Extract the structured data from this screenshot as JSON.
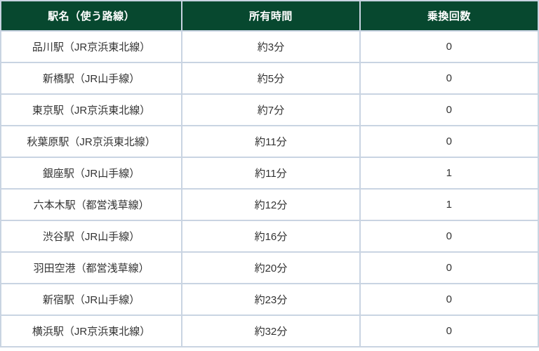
{
  "chart_data": {
    "type": "table",
    "title": "",
    "columns": [
      "駅名（使う路線）",
      "所有時間",
      "乗換回数"
    ],
    "rows": [
      [
        "品川駅（JR京浜東北線）",
        "約3分",
        "0"
      ],
      [
        "新橋駅（JR山手線）",
        "約5分",
        "0"
      ],
      [
        "東京駅（JR京浜東北線）",
        "約7分",
        "0"
      ],
      [
        "秋葉原駅（JR京浜東北線）",
        "約11分",
        "0"
      ],
      [
        "銀座駅（JR山手線）",
        "約11分",
        "1"
      ],
      [
        "六本木駅（都営浅草線）",
        "約12分",
        "1"
      ],
      [
        "渋谷駅（JR山手線）",
        "約16分",
        "0"
      ],
      [
        "羽田空港（都営浅草線）",
        "約20分",
        "0"
      ],
      [
        "新宿駅（JR山手線）",
        "約23分",
        "0"
      ],
      [
        "横浜駅（JR京浜東北線）",
        "約32分",
        "0"
      ]
    ]
  },
  "colors": {
    "header_bg": "#07482f",
    "header_text": "#ffffff",
    "border": "#c9d4e2",
    "body_text": "#333333",
    "row_bg": "#ffffff"
  }
}
